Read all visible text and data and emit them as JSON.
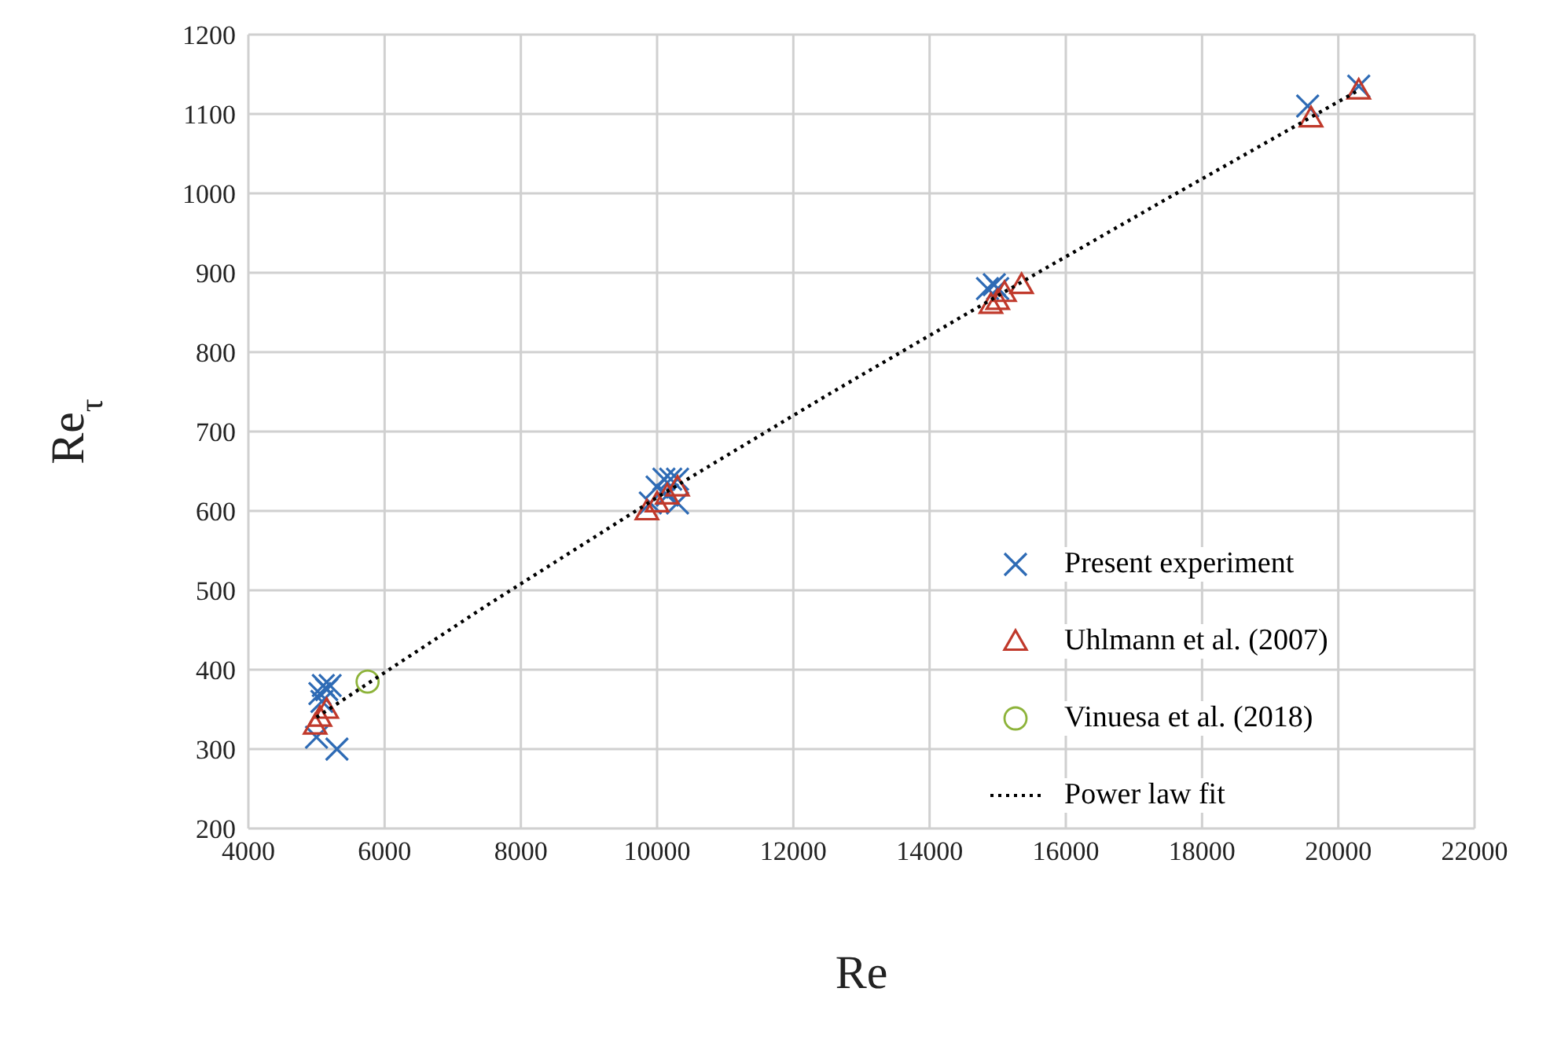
{
  "chart_data": {
    "type": "scatter",
    "xlabel": "Re",
    "ylabel": "Re$_{τ}$",
    "xlim": [
      4000,
      22000
    ],
    "xticks": [
      4000,
      6000,
      8000,
      10000,
      12000,
      14000,
      16000,
      18000,
      20000,
      22000
    ],
    "ylim": [
      200,
      1200
    ],
    "yticks": [
      200,
      300,
      400,
      500,
      600,
      700,
      800,
      900,
      1000,
      1100,
      1200
    ],
    "grid": true,
    "legend": "right",
    "series": [
      {
        "name": "Present experiment",
        "color": "#2e6bb5",
        "marker": "cross",
        "x": [
          5000,
          5050,
          5080,
          5100,
          5150,
          5200,
          5300,
          9900,
          10000,
          10100,
          10150,
          10200,
          10300,
          10300,
          14850,
          14950,
          15000,
          19550,
          20300
        ],
        "values": [
          315,
          370,
          360,
          380,
          375,
          380,
          300,
          610,
          630,
          640,
          620,
          640,
          640,
          610,
          880,
          885,
          880,
          1110,
          1135
        ]
      },
      {
        "name": "Uhlmann et al. (2007)",
        "color": "#c0392b",
        "marker": "triangle",
        "x": [
          4980,
          5050,
          5150,
          9850,
          10000,
          10150,
          10300,
          14900,
          15000,
          15100,
          15350,
          19600,
          20300
        ],
        "values": [
          330,
          340,
          350,
          600,
          610,
          620,
          630,
          860,
          865,
          875,
          885,
          1095,
          1130
        ]
      },
      {
        "name": "Vinuesa et al. (2018)",
        "color": "#8db33a",
        "marker": "circle",
        "x": [
          5750
        ],
        "values": [
          385
        ]
      },
      {
        "name": "Power law fit",
        "type": "line",
        "color": "#000000",
        "marker": "none",
        "line_style": "dotted",
        "x": [
          5000,
          7500,
          10000,
          12500,
          15000,
          17500,
          20300
        ],
        "values": [
          340,
          481,
          617,
          746,
          871,
          994,
          1130
        ]
      }
    ]
  }
}
